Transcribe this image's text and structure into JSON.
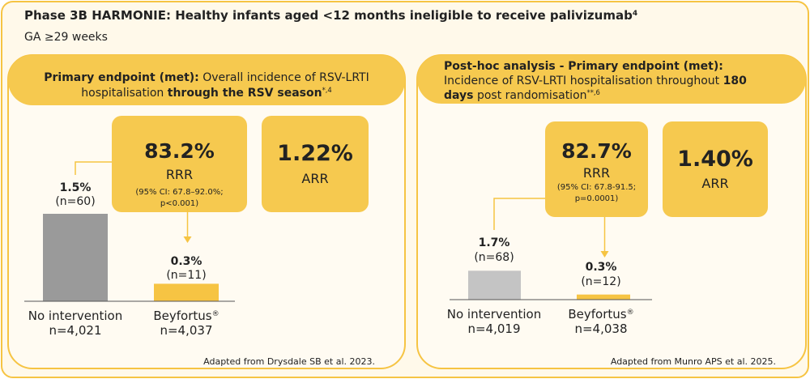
{
  "header": {
    "title": [
      {
        "text": "Phase 3B HARMONIE: Healthy infants aged <12 months ineligible to receive palivizumab"
      },
      {
        "text": "4",
        "sup": true
      }
    ],
    "subtitle": "GA ≥29 weeks"
  },
  "panels": [
    {
      "heading": [
        [
          {
            "text": "Primary endpoint (met):",
            "bold": true
          },
          {
            "text": " Overall incidence of RSV-LRTI"
          }
        ],
        [
          {
            "text": "hospitalisation "
          },
          {
            "text": "through the RSV season",
            "bold": true
          },
          {
            "text": "*,4",
            "sup": true
          }
        ]
      ],
      "rrr": {
        "value": "83.2%",
        "label": "RRR",
        "ci": [
          "(95% CI: 67.8–92.0%;",
          "p<0.001)"
        ]
      },
      "arr": {
        "value": "1.22%",
        "label": "ARR"
      },
      "bars": {
        "values": [
          1.5,
          0.3
        ],
        "value_labels": [
          "1.5%",
          "0.3%"
        ],
        "n": [
          "(n=60)",
          "(n=11)"
        ],
        "categories": [
          [
            {
              "text": "No intervention"
            }
          ],
          [
            {
              "text": "Beyfortus"
            },
            {
              "text": "®",
              "sup": true
            }
          ]
        ],
        "totals": [
          "n=4,021",
          "n=4,037"
        ],
        "colors": [
          "#9a9a9a",
          "#f6c443"
        ]
      },
      "source": "Adapted from Drysdale SB et al. 2023."
    },
    {
      "heading": [
        [
          {
            "text": "Post-hoc analysis - Primary endpoint (met):",
            "bold": true
          }
        ],
        [
          {
            "text": "Incidence of RSV-LRTI hospitalisation throughout "
          },
          {
            "text": "180",
            "bold": true
          }
        ],
        [
          {
            "text": "days",
            "bold": true
          },
          {
            "text": " post randomisation"
          },
          {
            "text": "**,6",
            "sup": true
          }
        ]
      ],
      "rrr": {
        "value": "82.7%",
        "label": "RRR",
        "ci": [
          "(95% CI: 67.8-91.5;",
          "p=0.0001)"
        ]
      },
      "arr": {
        "value": "1.40%",
        "label": "ARR"
      },
      "bars": {
        "values": [
          1.7,
          0.3
        ],
        "value_labels": [
          "1.7%",
          "0.3%"
        ],
        "n": [
          "(n=68)",
          "(n=12)"
        ],
        "categories": [
          [
            {
              "text": "No intervention"
            }
          ],
          [
            {
              "text": "Beyfortus"
            },
            {
              "text": "®",
              "sup": true
            }
          ]
        ],
        "totals": [
          "n=4,019",
          "n=4,038"
        ],
        "colors": [
          "#c4c4c4",
          "#f6c443"
        ]
      },
      "source": "Adapted from Munro APS et al. 2025."
    }
  ]
}
